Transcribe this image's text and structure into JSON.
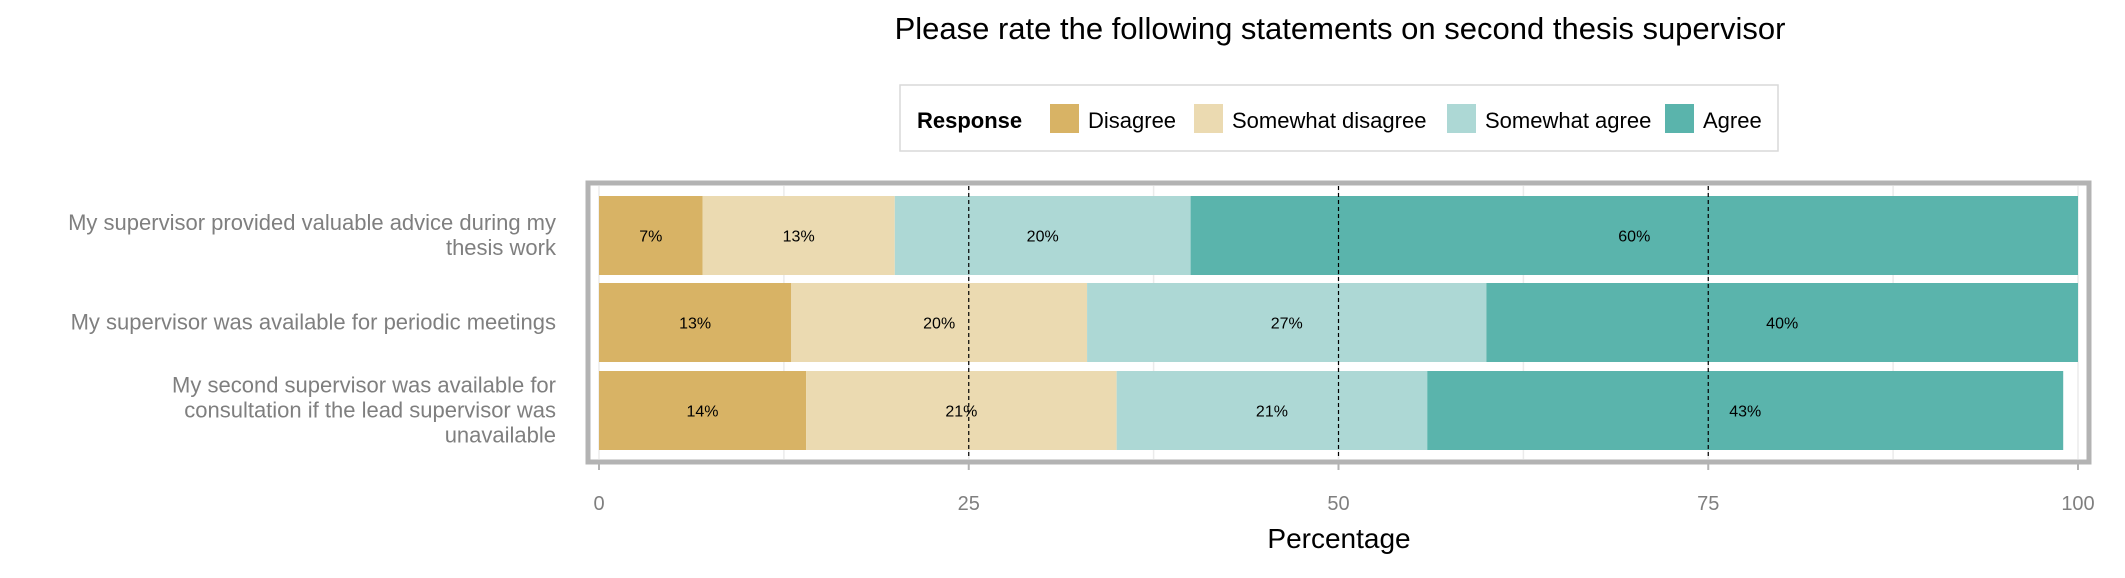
{
  "chart_data": {
    "type": "bar",
    "orientation": "horizontal",
    "stacked": true,
    "title": "Please rate the following statements on second thesis supervisor",
    "xlabel": "Percentage",
    "ylabel": "",
    "xlim": [
      0,
      100
    ],
    "x_ticks": [
      "0",
      "25",
      "50",
      "75",
      "100"
    ],
    "reference_lines": [
      25,
      50,
      75
    ],
    "legend": {
      "title": "Response",
      "position": "top"
    },
    "categories": [
      [
        "My supervisor provided valuable advice during my",
        "thesis work"
      ],
      [
        "My supervisor was available for periodic meetings"
      ],
      [
        "My second supervisor was available for",
        "consultation if the lead supervisor was",
        "unavailable"
      ]
    ],
    "series": [
      {
        "name": "Disagree",
        "color": "#d8b365",
        "values": [
          7,
          13,
          14
        ],
        "labels": [
          "7%",
          "13%",
          "14%"
        ]
      },
      {
        "name": "Somewhat disagree",
        "color": "#ebdab1",
        "values": [
          13,
          20,
          21
        ],
        "labels": [
          "13%",
          "20%",
          "21%"
        ]
      },
      {
        "name": "Somewhat agree",
        "color": "#add8d5",
        "values": [
          20,
          27,
          21
        ],
        "labels": [
          "20%",
          "27%",
          "21%"
        ]
      },
      {
        "name": "Agree",
        "color": "#5ab4ac",
        "values": [
          60,
          40,
          43
        ],
        "labels": [
          "60%",
          "40%",
          "43%"
        ]
      }
    ],
    "grid": true
  }
}
